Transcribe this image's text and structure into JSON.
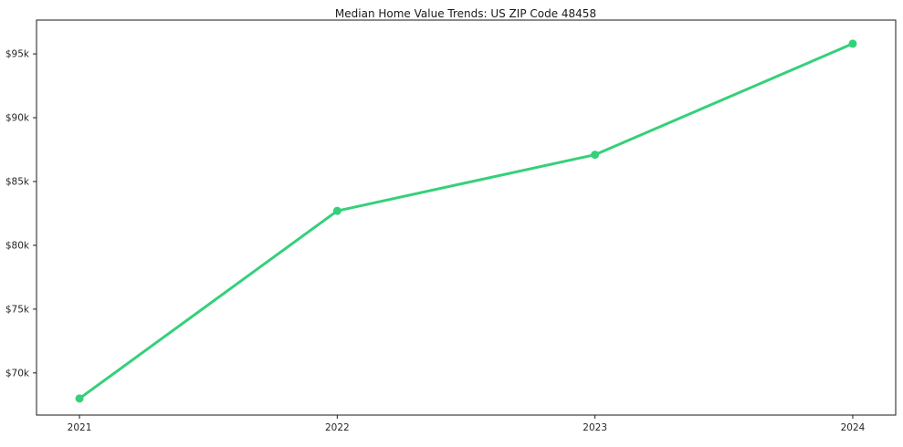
{
  "chart_data": {
    "type": "line",
    "title": "Median Home Value Trends: US ZIP Code 48458",
    "categories": [
      "2021",
      "2022",
      "2023",
      "2024"
    ],
    "series": [
      {
        "name": "Median Home Value",
        "values": [
          68000,
          82700,
          87100,
          95800
        ]
      }
    ],
    "xlabel": "",
    "ylabel": "",
    "ylim": [
      66700,
      97650
    ],
    "yticks": [
      {
        "value": 70000,
        "label": "$70k"
      },
      {
        "value": 75000,
        "label": "$75k"
      },
      {
        "value": 80000,
        "label": "$80k"
      },
      {
        "value": 85000,
        "label": "$85k"
      },
      {
        "value": 90000,
        "label": "$90k"
      },
      {
        "value": 95000,
        "label": "$95k"
      }
    ],
    "grid": false,
    "legend_position": "none",
    "line_color": "#35d07a",
    "marker": "circle",
    "background_color": "#ffffff",
    "axis_color": "#1a1a1a"
  }
}
